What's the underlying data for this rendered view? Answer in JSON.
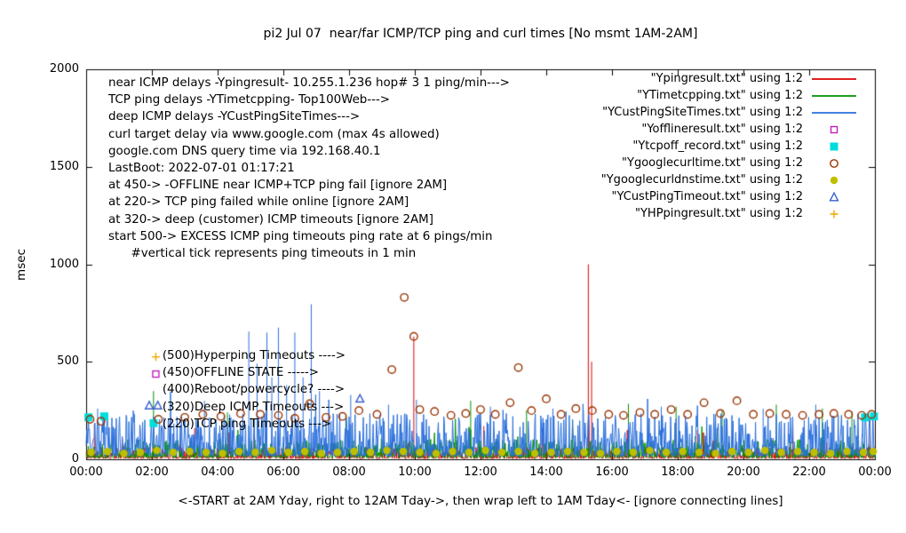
{
  "chart_data": {
    "type": "line",
    "title": "pi2 Jul 07  near/far ICMP/TCP ping and curl times [No msmt 1AM-2AM]",
    "ylabel": "msec",
    "xlabel": "<-START at 2AM Yday, right to 12AM Tday->, then wrap left to 1AM Tday<- [ignore connecting lines]",
    "ylim": [
      0,
      2000
    ],
    "x_range_hours": [
      0,
      24
    ],
    "y_ticks": [
      0,
      500,
      1000,
      1500,
      2000
    ],
    "x_ticks": [
      {
        "hour": 0,
        "label": "00:00"
      },
      {
        "hour": 2,
        "label": "02:00"
      },
      {
        "hour": 4,
        "label": "04:00"
      },
      {
        "hour": 6,
        "label": "06:00"
      },
      {
        "hour": 8,
        "label": "08:00"
      },
      {
        "hour": 10,
        "label": "10:00"
      },
      {
        "hour": 12,
        "label": "12:00"
      },
      {
        "hour": 14,
        "label": "14:00"
      },
      {
        "hour": 16,
        "label": "16:00"
      },
      {
        "hour": 18,
        "label": "18:00"
      },
      {
        "hour": 20,
        "label": "20:00"
      },
      {
        "hour": 22,
        "label": "22:00"
      },
      {
        "hour": 24,
        "label": "00:00"
      }
    ],
    "info_lines": [
      "near ICMP delays -Ypingresult- 10.255.1.236 hop# 3 1 ping/min--->",
      "TCP ping delays -YTimetcpping- Top100Web--->",
      "deep ICMP delays -YCustPingSiteTimes--->",
      "curl target delay via www.google.com (max 4s allowed)",
      "google.com DNS query time via 192.168.40.1",
      "LastBoot: 2022-07-01 01:17:21",
      "at 450-> -OFFLINE near ICMP+TCP ping fail [ignore 2AM]",
      "at 220-> TCP ping failed while online [ignore 2AM]",
      "at 320-> deep (customer) ICMP timeouts [ignore 2AM]",
      "start 500-> EXCESS ICMP ping timeouts ping rate at 6 pings/min",
      "      #vertical tick represents ping timeouts in 1 min"
    ],
    "annotations": [
      {
        "x": 2.32,
        "y": 525,
        "text": "(500)Hyperping Timeouts ---->"
      },
      {
        "x": 2.32,
        "y": 437,
        "text": "(450)OFFLINE STATE ----->"
      },
      {
        "x": 2.32,
        "y": 349,
        "text": "(400)Reboot/powercycle? ---->"
      },
      {
        "x": 2.32,
        "y": 261,
        "text": "(320)Deep ICMP Timeouts --->"
      },
      {
        "x": 2.32,
        "y": 173,
        "text": "(220)TCP ping Timeouts --->"
      }
    ],
    "series": [
      {
        "name": "Ypingresult",
        "legend": "\"Ypingresult.txt\" using 1:2",
        "color": "#dd0000",
        "style": "line",
        "noise": {
          "seed": 11,
          "base": 4,
          "typ": 60,
          "skew": 2.6,
          "p_tall": 0.012,
          "tall": 160
        },
        "spikes": [
          [
            0.25,
            180
          ],
          [
            3.3,
            160
          ],
          [
            9.97,
            630
          ],
          [
            12.1,
            170
          ],
          [
            15.28,
            1000
          ],
          [
            15.38,
            500
          ],
          [
            18.6,
            150
          ],
          [
            21.5,
            200
          ],
          [
            23.85,
            200
          ]
        ]
      },
      {
        "name": "YTimetcpping",
        "legend": "\"YTimetcpping.txt\" using 1:2",
        "color": "#009100",
        "style": "line",
        "noise": {
          "seed": 22,
          "base": 8,
          "typ": 95,
          "skew": 2.6,
          "p_tall": 0.02,
          "tall": 140
        },
        "spikes": [
          [
            2.05,
            350
          ],
          [
            4.3,
            240
          ],
          [
            7.9,
            230
          ],
          [
            11.7,
            300
          ],
          [
            13.4,
            250
          ],
          [
            16.5,
            285
          ],
          [
            17.95,
            270
          ],
          [
            19.35,
            255
          ],
          [
            21.0,
            280
          ],
          [
            22.4,
            260
          ],
          [
            23.3,
            245
          ]
        ]
      },
      {
        "name": "YCustPingSiteTimes",
        "legend": "\"YCustPingSiteTimes.txt\" using 1:2",
        "color": "#2a6fdb",
        "style": "line",
        "noise": {
          "seed": 33,
          "base": 15,
          "typ": 220,
          "skew": 2.3,
          "p_tall": 0.03,
          "tall": 140
        },
        "spikes": [
          [
            0.35,
            260
          ],
          [
            3.6,
            300
          ],
          [
            4.95,
            655
          ],
          [
            5.2,
            490
          ],
          [
            5.5,
            650
          ],
          [
            5.65,
            420
          ],
          [
            5.85,
            675
          ],
          [
            6.1,
            380
          ],
          [
            6.35,
            650
          ],
          [
            6.6,
            420
          ],
          [
            6.85,
            795
          ],
          [
            7.1,
            350
          ],
          [
            8.05,
            330
          ],
          [
            9.2,
            280
          ],
          [
            10.05,
            305
          ],
          [
            12.3,
            270
          ],
          [
            14.2,
            260
          ],
          [
            17.5,
            270
          ],
          [
            20.6,
            260
          ],
          [
            22.2,
            280
          ]
        ]
      },
      {
        "name": "Yofflineresult",
        "legend": "\"Yofflineresult.txt\" using 1:2",
        "color": "#c020c0",
        "style": "square-open",
        "points": [
          [
            2.12,
            437
          ]
        ]
      },
      {
        "name": "Ytcpoff_record",
        "legend": "\"Ytcpoff_record.txt\" using 1:2",
        "color": "#00dddd",
        "style": "square-filled",
        "points": [
          [
            0.07,
            215
          ],
          [
            0.55,
            220
          ],
          [
            2.05,
            185
          ],
          [
            23.7,
            215
          ],
          [
            23.97,
            220
          ]
        ]
      },
      {
        "name": "Ygooglecurltime",
        "legend": "\"Ygooglecurltime.txt\" using 1:2",
        "color": "#993300",
        "style": "circle-open",
        "points": [
          [
            0.12,
            205
          ],
          [
            0.45,
            195
          ],
          [
            2.2,
            205
          ],
          [
            3.0,
            215
          ],
          [
            3.55,
            230
          ],
          [
            4.1,
            220
          ],
          [
            4.7,
            235
          ],
          [
            5.3,
            230
          ],
          [
            5.85,
            225
          ],
          [
            6.35,
            210
          ],
          [
            6.8,
            285
          ],
          [
            7.3,
            215
          ],
          [
            7.8,
            220
          ],
          [
            8.3,
            250
          ],
          [
            8.85,
            230
          ],
          [
            9.3,
            460
          ],
          [
            9.68,
            830
          ],
          [
            9.97,
            630
          ],
          [
            10.15,
            255
          ],
          [
            10.6,
            245
          ],
          [
            11.1,
            225
          ],
          [
            11.55,
            235
          ],
          [
            12.0,
            255
          ],
          [
            12.45,
            230
          ],
          [
            12.9,
            290
          ],
          [
            13.15,
            470
          ],
          [
            13.55,
            250
          ],
          [
            14.0,
            310
          ],
          [
            14.45,
            230
          ],
          [
            14.9,
            260
          ],
          [
            15.4,
            250
          ],
          [
            15.9,
            230
          ],
          [
            16.35,
            225
          ],
          [
            16.85,
            240
          ],
          [
            17.3,
            230
          ],
          [
            17.8,
            255
          ],
          [
            18.3,
            230
          ],
          [
            18.8,
            290
          ],
          [
            19.3,
            235
          ],
          [
            19.8,
            300
          ],
          [
            20.3,
            230
          ],
          [
            20.8,
            235
          ],
          [
            21.3,
            230
          ],
          [
            21.8,
            225
          ],
          [
            22.3,
            230
          ],
          [
            22.75,
            235
          ],
          [
            23.2,
            230
          ],
          [
            23.6,
            225
          ],
          [
            23.9,
            230
          ]
        ]
      },
      {
        "name": "Ygooglecurldnstime",
        "legend": "\"Ygooglecurldnstime.txt\" using 1:2",
        "color": "#bfbf00",
        "style": "circle-filled",
        "points": [
          [
            0.15,
            35
          ],
          [
            0.65,
            40
          ],
          [
            1.15,
            30
          ],
          [
            1.65,
            35
          ],
          [
            2.15,
            45
          ],
          [
            2.65,
            35
          ],
          [
            3.15,
            40
          ],
          [
            3.65,
            35
          ],
          [
            4.15,
            30
          ],
          [
            4.65,
            40
          ],
          [
            5.15,
            35
          ],
          [
            5.65,
            45
          ],
          [
            6.15,
            35
          ],
          [
            6.65,
            40
          ],
          [
            7.15,
            30
          ],
          [
            7.65,
            35
          ],
          [
            8.15,
            40
          ],
          [
            8.65,
            35
          ],
          [
            9.15,
            45
          ],
          [
            9.65,
            40
          ],
          [
            10.15,
            35
          ],
          [
            10.65,
            30
          ],
          [
            11.15,
            40
          ],
          [
            11.65,
            35
          ],
          [
            12.15,
            45
          ],
          [
            12.65,
            35
          ],
          [
            13.15,
            40
          ],
          [
            13.65,
            30
          ],
          [
            14.15,
            35
          ],
          [
            14.65,
            40
          ],
          [
            15.15,
            35
          ],
          [
            15.65,
            30
          ],
          [
            16.15,
            40
          ],
          [
            16.65,
            35
          ],
          [
            17.15,
            45
          ],
          [
            17.65,
            35
          ],
          [
            18.15,
            40
          ],
          [
            18.65,
            35
          ],
          [
            19.15,
            30
          ],
          [
            19.65,
            40
          ],
          [
            20.15,
            35
          ],
          [
            20.65,
            45
          ],
          [
            21.15,
            35
          ],
          [
            21.65,
            40
          ],
          [
            22.15,
            35
          ],
          [
            22.65,
            30
          ],
          [
            23.15,
            40
          ],
          [
            23.65,
            35
          ],
          [
            23.95,
            40
          ]
        ]
      },
      {
        "name": "YCustPingTimeout",
        "legend": "\"YCustPingTimeout.txt\" using 1:2",
        "color": "#3a5fcd",
        "style": "triangle-open",
        "points": [
          [
            1.92,
            275
          ],
          [
            2.18,
            275
          ],
          [
            8.33,
            310
          ]
        ]
      },
      {
        "name": "YHPpingresult",
        "legend": "\"YHPpingresult.txt\" using 1:2",
        "color": "#f0a500",
        "style": "plus",
        "points": [
          [
            2.12,
            525
          ]
        ]
      }
    ]
  }
}
